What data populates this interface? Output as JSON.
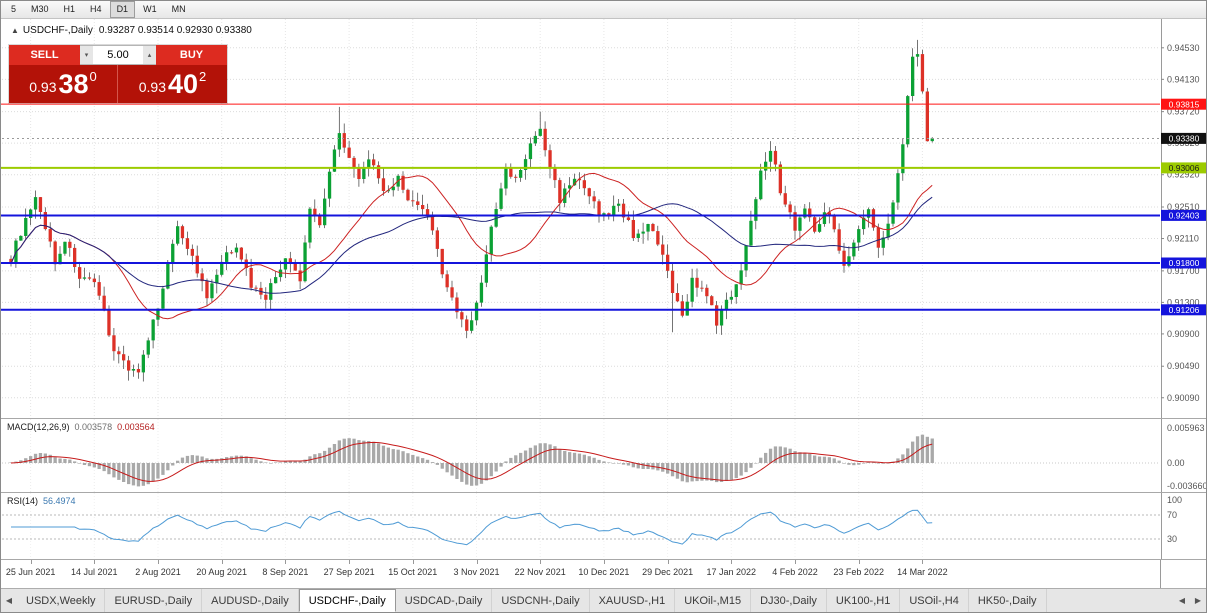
{
  "toolbar": {
    "timeframes": [
      "5",
      "M30",
      "H1",
      "H4",
      "D1",
      "W1",
      "MN"
    ],
    "active": "D1"
  },
  "chart": {
    "collapse_arrow": "▲",
    "title_symbol": "USDCHF-,Daily",
    "title_ohlc": "0.93287 0.93514 0.92930 0.93380"
  },
  "trade_panel": {
    "sell_label": "SELL",
    "buy_label": "BUY",
    "volume": "5.00",
    "spinner_up": "▴",
    "spinner_down": "▾",
    "sell_price": {
      "big": "0.93",
      "pips": "38",
      "pipette": "0"
    },
    "buy_price": {
      "big": "0.93",
      "pips": "40",
      "pipette": "2"
    }
  },
  "price_scale": {
    "ticks": [
      "0.94530",
      "0.94130",
      "0.93720",
      "0.93320",
      "0.92920",
      "0.92510",
      "0.92110",
      "0.91700",
      "0.91300",
      "0.90900",
      "0.90490",
      "0.90090"
    ],
    "current": {
      "label": "0.93380",
      "value": 0.9338,
      "bg": "#111111",
      "fg": "#ffffff"
    }
  },
  "levels": [
    {
      "value": 0.93815,
      "label": "0.93815",
      "color": "#ff1414",
      "thickness": 1,
      "text": "#ffffff"
    },
    {
      "value": 0.93006,
      "label": "0.93006",
      "color": "#9ccb00",
      "thickness": 2,
      "text": "#1a1a1a"
    },
    {
      "value": 0.92403,
      "label": "0.92403",
      "color": "#1414dc",
      "thickness": 2,
      "text": "#ffffff"
    },
    {
      "value": 0.918,
      "label": "0.91800",
      "color": "#1414dc",
      "thickness": 2,
      "text": "#ffffff"
    },
    {
      "value": 0.91206,
      "label": "0.91206",
      "color": "#1414dc",
      "thickness": 2,
      "text": "#ffffff"
    }
  ],
  "indicators": {
    "macd": {
      "name": "MACD(12,26,9)",
      "value_main": "0.003578",
      "value_signal": "0.003564",
      "scale": [
        "0.005963",
        "0.00",
        "-0.003660"
      ],
      "histogram_color": "#a9a9a9",
      "signal_color": "#c61a1a"
    },
    "rsi": {
      "name": "RSI(14)",
      "value": "56.4974",
      "scale": [
        "100",
        "70",
        "30"
      ],
      "levels": [
        70,
        30
      ],
      "line_color": "#4f9bd5"
    }
  },
  "time_axis": {
    "labels": [
      "25 Jun 2021",
      "14 Jul 2021",
      "2 Aug 2021",
      "20 Aug 2021",
      "8 Sep 2021",
      "27 Sep 2021",
      "15 Oct 2021",
      "3 Nov 2021",
      "22 Nov 2021",
      "10 Dec 2021",
      "29 Dec 2021",
      "17 Jan 2022",
      "4 Feb 2022",
      "23 Feb 2022",
      "14 Mar 2022"
    ]
  },
  "tabs": {
    "left_scroll": "◀",
    "nav_prev": "◀",
    "nav_next": "▶",
    "active": "USDCHF-,Daily",
    "items": [
      "USDX,Weekly",
      "EURUSD-,Daily",
      "AUDUSD-,Daily",
      "USDCHF-,Daily",
      "USDCAD-,Daily",
      "USDCNH-,Daily",
      "XAUUSD-,H1",
      "UKOil-,M15",
      "DJ30-,Daily",
      "UK100-,H1",
      "USOil-,H4",
      "HK50-,Daily"
    ]
  },
  "chart_data": {
    "type": "candlestick",
    "symbol": "USDCHF",
    "timeframe": "Daily",
    "x_range": [
      "25 Jun 2021",
      "15 Mar 2022"
    ],
    "bars": 189,
    "price_domain": [
      0.8996,
      0.9487
    ],
    "current_bar": {
      "open": 0.93287,
      "high": 0.93514,
      "low": 0.9293,
      "close": 0.9338
    },
    "bar_spacing": 4.9,
    "bar_width": 3.3,
    "x_start": 10,
    "first_label_bar": 4,
    "bars_per_label": 13,
    "noise": 0.0006,
    "wick_noise": 0.0013,
    "close_anchors": [
      [
        0,
        0.9185
      ],
      [
        2,
        0.922
      ],
      [
        5,
        0.9258
      ],
      [
        7,
        0.9228
      ],
      [
        9,
        0.918
      ],
      [
        11,
        0.921
      ],
      [
        14,
        0.9163
      ],
      [
        17,
        0.915
      ],
      [
        19,
        0.9118
      ],
      [
        21,
        0.907
      ],
      [
        24,
        0.9048
      ],
      [
        26,
        0.9042
      ],
      [
        28,
        0.9078
      ],
      [
        31,
        0.9152
      ],
      [
        34,
        0.923
      ],
      [
        37,
        0.9186
      ],
      [
        40,
        0.9135
      ],
      [
        43,
        0.918
      ],
      [
        46,
        0.9205
      ],
      [
        49,
        0.9152
      ],
      [
        52,
        0.9138
      ],
      [
        56,
        0.9186
      ],
      [
        59,
        0.9158
      ],
      [
        61,
        0.925
      ],
      [
        63,
        0.9232
      ],
      [
        65,
        0.9296
      ],
      [
        67,
        0.935
      ],
      [
        69,
        0.9312
      ],
      [
        71,
        0.9282
      ],
      [
        73,
        0.9316
      ],
      [
        76,
        0.9266
      ],
      [
        79,
        0.9286
      ],
      [
        82,
        0.9254
      ],
      [
        85,
        0.924
      ],
      [
        88,
        0.917
      ],
      [
        91,
        0.9118
      ],
      [
        93,
        0.9094
      ],
      [
        95,
        0.9128
      ],
      [
        98,
        0.9222
      ],
      [
        101,
        0.9298
      ],
      [
        103,
        0.9284
      ],
      [
        106,
        0.9328
      ],
      [
        108,
        0.935
      ],
      [
        110,
        0.93
      ],
      [
        112,
        0.9262
      ],
      [
        115,
        0.929
      ],
      [
        118,
        0.9262
      ],
      [
        121,
        0.9238
      ],
      [
        124,
        0.9256
      ],
      [
        127,
        0.9216
      ],
      [
        130,
        0.9228
      ],
      [
        133,
        0.9188
      ],
      [
        135,
        0.9142
      ],
      [
        137,
        0.9112
      ],
      [
        139,
        0.916
      ],
      [
        142,
        0.9136
      ],
      [
        144,
        0.9106
      ],
      [
        147,
        0.914
      ],
      [
        149,
        0.9174
      ],
      [
        151,
        0.923
      ],
      [
        153,
        0.93
      ],
      [
        155,
        0.9328
      ],
      [
        157,
        0.9272
      ],
      [
        160,
        0.9226
      ],
      [
        162,
        0.925
      ],
      [
        164,
        0.922
      ],
      [
        166,
        0.925
      ],
      [
        168,
        0.922
      ],
      [
        170,
        0.918
      ],
      [
        173,
        0.922
      ],
      [
        175,
        0.925
      ],
      [
        177,
        0.9196
      ],
      [
        179,
        0.923
      ],
      [
        180,
        0.9262
      ],
      [
        182,
        0.9336
      ],
      [
        184,
        0.9442
      ],
      [
        185,
        0.945
      ],
      [
        186,
        0.94
      ],
      [
        187,
        0.933
      ],
      [
        188,
        0.9338
      ]
    ],
    "wick_overrides": [
      [
        5,
        "high",
        0.9272
      ],
      [
        26,
        "low",
        0.9038
      ],
      [
        67,
        "high",
        0.9378
      ],
      [
        93,
        "low",
        0.9086
      ],
      [
        108,
        "high",
        0.9372
      ],
      [
        135,
        "low",
        0.9092
      ],
      [
        144,
        "low",
        0.909
      ],
      [
        185,
        "high",
        0.9463
      ]
    ],
    "overlays": [
      {
        "name": "ma-fast-line",
        "period": 20,
        "color": "#cc2222"
      },
      {
        "name": "ma-slow-line",
        "period": 40,
        "color": "#22267d"
      }
    ],
    "style": {
      "up_color": "#0ba134",
      "down_color": "#dd3127",
      "wick_color": "#3a3a3a"
    }
  }
}
